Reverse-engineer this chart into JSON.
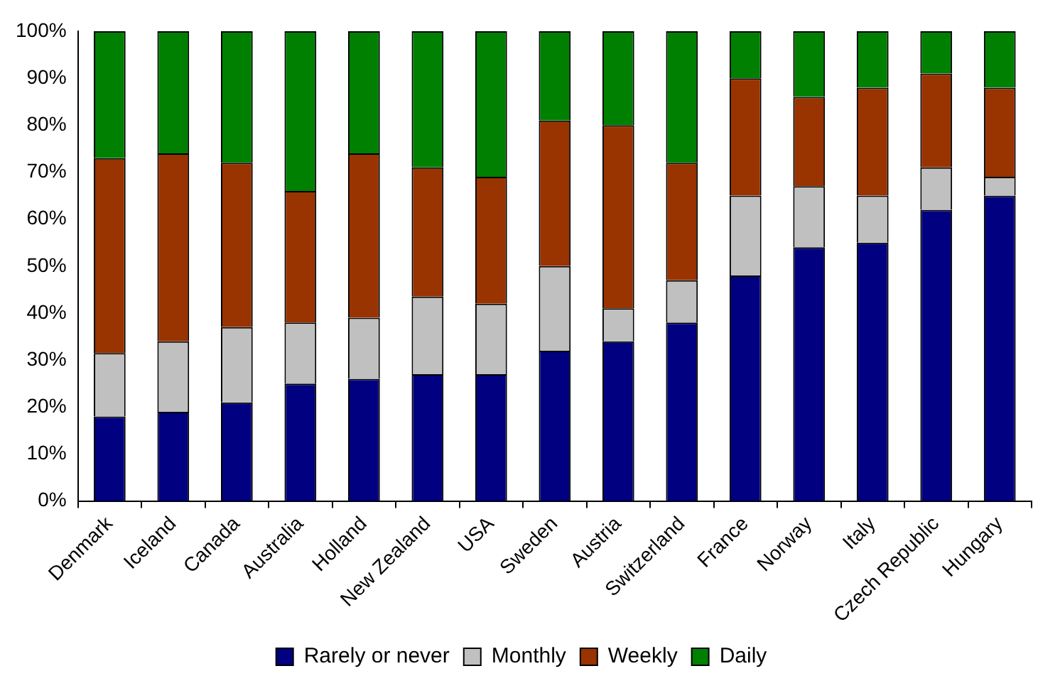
{
  "chart_data": {
    "type": "bar",
    "stacked": true,
    "categories": [
      "Denmark",
      "Iceland",
      "Canada",
      "Australia",
      "Holland",
      "New Zealand",
      "USA",
      "Sweden",
      "Austria",
      "Switzerland",
      "France",
      "Norway",
      "Italy",
      "Czech Republic",
      "Hungary"
    ],
    "series": [
      {
        "name": "Rarely or never",
        "color": "#000080",
        "values": [
          18,
          19,
          21,
          25,
          26,
          27,
          27,
          32,
          34,
          38,
          48,
          54,
          55,
          62,
          65
        ]
      },
      {
        "name": "Monthly",
        "color": "#c0c0c0",
        "values": [
          13.5,
          15,
          16,
          13,
          13,
          16.5,
          15,
          18,
          7,
          9,
          17,
          13,
          10,
          9,
          4
        ]
      },
      {
        "name": "Weekly",
        "color": "#993300",
        "values": [
          41.5,
          40,
          35,
          28,
          35,
          27.5,
          27,
          31,
          39,
          25,
          25,
          19,
          23,
          20,
          19
        ]
      },
      {
        "name": "Daily",
        "color": "#008000",
        "values": [
          27,
          26,
          28,
          34,
          26,
          29,
          31,
          19,
          20,
          28,
          10,
          14,
          12,
          9,
          12
        ]
      }
    ],
    "ylim": [
      0,
      100
    ],
    "yticks": [
      {
        "value": 0,
        "label": "0%"
      },
      {
        "value": 10,
        "label": "10%"
      },
      {
        "value": 20,
        "label": "20%"
      },
      {
        "value": 30,
        "label": "30%"
      },
      {
        "value": 40,
        "label": "40%"
      },
      {
        "value": 50,
        "label": "50%"
      },
      {
        "value": 60,
        "label": "60%"
      },
      {
        "value": 70,
        "label": "70%"
      },
      {
        "value": 80,
        "label": "80%"
      },
      {
        "value": 90,
        "label": "90%"
      },
      {
        "value": 100,
        "label": "100%"
      }
    ],
    "grid": false,
    "legend": "bottom"
  }
}
